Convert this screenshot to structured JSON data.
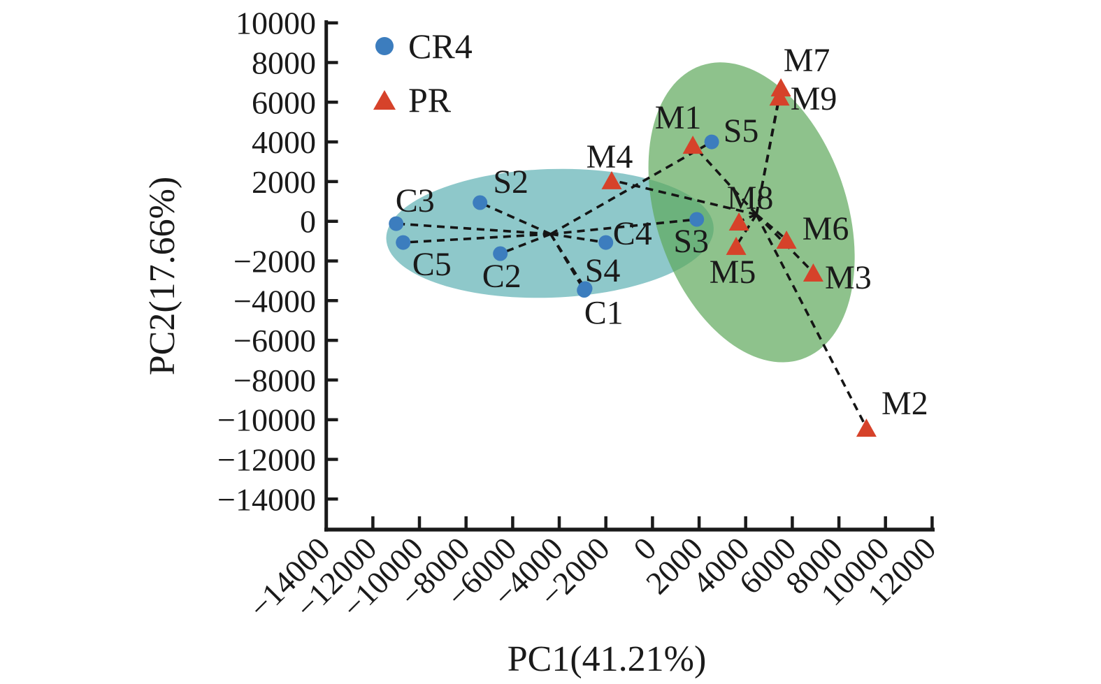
{
  "figure": {
    "description": "PCA score scatter plot with two clustered groups",
    "background": "#ffffff",
    "text_color": "#1a1a1a"
  },
  "legend": {
    "items": [
      {
        "label": "CR4",
        "marker": "circle",
        "color": "#3c7dbe"
      },
      {
        "label": "PR",
        "marker": "triangle",
        "color": "#d6422a"
      }
    ]
  },
  "chart_data": {
    "type": "scatter",
    "xlabel": "PC1(41.21%)",
    "ylabel": "PC2(17.66%)",
    "xlim": [
      -14000,
      12110
    ],
    "ylim": [
      -15550,
      10130
    ],
    "x_ticks": [
      -14000,
      -12000,
      -10000,
      -8000,
      -6000,
      -4000,
      -2000,
      0,
      2000,
      4000,
      6000,
      8000,
      10000,
      12000
    ],
    "y_ticks": [
      10000,
      8000,
      6000,
      4000,
      2000,
      0,
      -2000,
      -4000,
      -6000,
      -8000,
      -10000,
      -12000,
      -14000
    ],
    "grid": false,
    "legend_position": "upper-left-inside",
    "connection_style": "dashed lines from each group centroid to its member points",
    "series": [
      {
        "name": "CR4",
        "marker": "circle",
        "color": "#3c7dbe",
        "centroid": {
          "x": -4370,
          "y": -645
        },
        "points": [
          {
            "label": "C1",
            "x": -2930,
            "y": -3480,
            "dx": 28,
            "dy": 32
          },
          {
            "label": "C2",
            "x": -6530,
            "y": -1630,
            "dx": 2,
            "dy": 32
          },
          {
            "label": "C3",
            "x": -11000,
            "y": -120,
            "dx": 27,
            "dy": -33
          },
          {
            "label": "C4",
            "x": -2000,
            "y": -1070,
            "dx": 38,
            "dy": -13
          },
          {
            "label": "C5",
            "x": -10700,
            "y": -1070,
            "dx": 41,
            "dy": 31
          },
          {
            "label": "S2",
            "x": -7400,
            "y": 940,
            "dx": 44,
            "dy": -30
          },
          {
            "label": "S3",
            "x": 1900,
            "y": 95,
            "dx": -8,
            "dy": 31
          },
          {
            "label": "S4",
            "x": -2890,
            "y": -3390,
            "dx": 25,
            "dy": -26
          },
          {
            "label": "S5",
            "x": 2540,
            "y": 4000,
            "dx": 42,
            "dy": -16
          }
        ]
      },
      {
        "name": "PR",
        "marker": "triangle",
        "color": "#d6422a",
        "centroid": {
          "x": 4460,
          "y": 340
        },
        "points": [
          {
            "label": "M1",
            "x": 1730,
            "y": 3860,
            "dx": -21,
            "dy": -39
          },
          {
            "label": "M2",
            "x": 9180,
            "y": -10400,
            "dx": 55,
            "dy": -35
          },
          {
            "label": "M3",
            "x": 6900,
            "y": -2580,
            "dx": 50,
            "dy": 7
          },
          {
            "label": "M4",
            "x": -1750,
            "y": 2070,
            "dx": -3,
            "dy": -34
          },
          {
            "label": "M5",
            "x": 3590,
            "y": -1240,
            "dx": -5,
            "dy": 37
          },
          {
            "label": "M6",
            "x": 5750,
            "y": -925,
            "dx": 56,
            "dy": -16
          },
          {
            "label": "M7",
            "x": 5510,
            "y": 6750,
            "dx": 37,
            "dy": -39
          },
          {
            "label": "M8",
            "x": 3710,
            "y": -10,
            "dx": 16,
            "dy": -34
          },
          {
            "label": "M9",
            "x": 5450,
            "y": 6290,
            "dx": 49,
            "dy": 3
          }
        ]
      }
    ],
    "ellipses": [
      {
        "group": "CR4",
        "color": "#49a6aa",
        "opacity": 0.62,
        "cx": -4400,
        "cy": -610,
        "rx": 7030,
        "ry": 3240,
        "rotation_deg": -2
      },
      {
        "group": "PR",
        "color": "#5ea85b",
        "opacity": 0.7,
        "cx": 4250,
        "cy": 450,
        "rx": 4080,
        "ry": 7820,
        "rotation_deg": -19
      }
    ]
  }
}
